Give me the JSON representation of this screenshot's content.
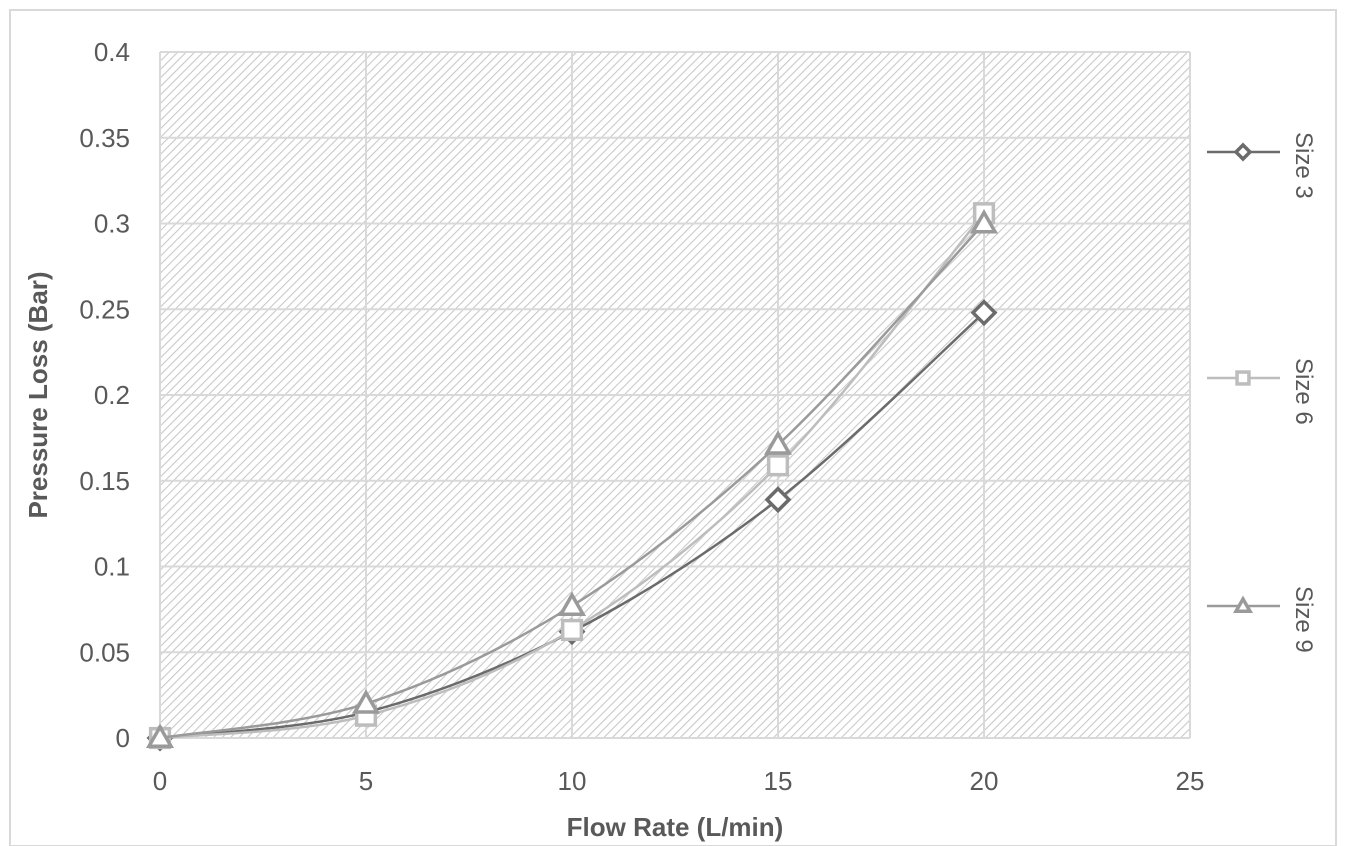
{
  "chart_data": {
    "type": "line",
    "title": "",
    "xlabel": "Flow Rate (L/min)",
    "ylabel": "Pressure Loss (Bar)",
    "xlim": [
      0,
      25
    ],
    "ylim": [
      0,
      0.4
    ],
    "x_ticks": [
      "0",
      "5",
      "10",
      "15",
      "20",
      "25"
    ],
    "y_ticks": [
      "0",
      "0.05",
      "0.1",
      "0.15",
      "0.2",
      "0.25",
      "0.3",
      "0.35",
      "0.4"
    ],
    "grid": true,
    "background_pattern": "diagonal-hatch",
    "legend_position": "right",
    "series": [
      {
        "name": "Size 3",
        "marker": "diamond",
        "color": "#6b6b6b",
        "x": [
          0,
          5,
          10,
          15,
          20
        ],
        "y": [
          0,
          0.015,
          0.062,
          0.139,
          0.248
        ]
      },
      {
        "name": "Size 6",
        "marker": "square",
        "color": "#bdbdbd",
        "x": [
          0,
          5,
          10,
          15,
          20
        ],
        "y": [
          0,
          0.013,
          0.063,
          0.159,
          0.306
        ]
      },
      {
        "name": "Size 9",
        "marker": "triangle",
        "color": "#9a9a9a",
        "x": [
          0,
          5,
          10,
          15,
          20
        ],
        "y": [
          0,
          0.02,
          0.077,
          0.171,
          0.3
        ]
      }
    ]
  }
}
